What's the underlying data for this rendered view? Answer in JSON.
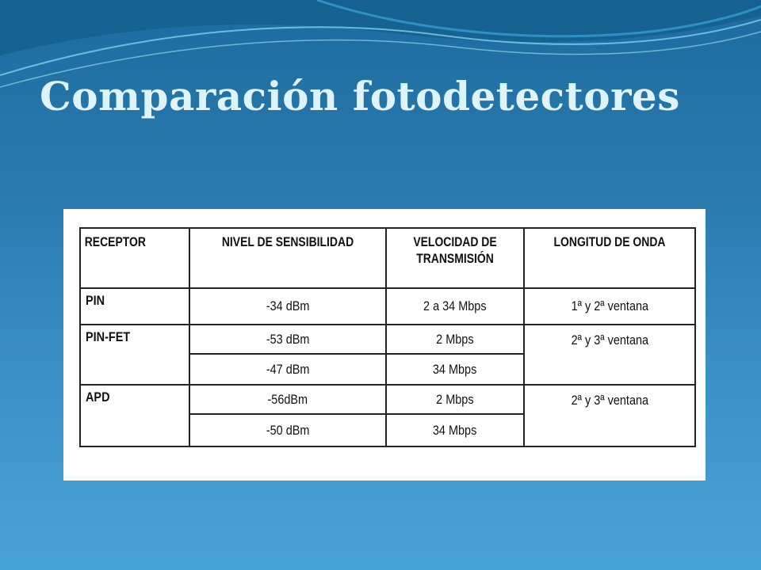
{
  "slide": {
    "title": "Comparación fotodetectores",
    "colors": {
      "background_top": "#1e6c9e",
      "background_bottom": "#4aa3d6",
      "title": "#dff3fb"
    }
  },
  "table": {
    "headers": [
      "RECEPTOR",
      "NIVEL DE SENSIBILIDAD",
      "VELOCIDAD DE TRANSMISIÓN",
      "LONGITUD DE ONDA"
    ],
    "rows": [
      {
        "receptor": "PIN",
        "sensitivity": "-34 dBm",
        "speed": "2 a 34 Mbps",
        "wavelength": "1ª y 2ª ventana"
      },
      {
        "receptor": "PIN-FET",
        "sensitivity": "-53 dBm",
        "speed": "2 Mbps",
        "wavelength": "2ª y 3ª ventana"
      },
      {
        "receptor": "",
        "sensitivity": "-47 dBm",
        "speed": "34 Mbps",
        "wavelength": ""
      },
      {
        "receptor": "APD",
        "sensitivity": "-56dBm",
        "speed": "2 Mbps",
        "wavelength": "2ª y 3ª ventana"
      },
      {
        "receptor": "",
        "sensitivity": "-50 dBm",
        "speed": "34 Mbps",
        "wavelength": ""
      }
    ]
  }
}
